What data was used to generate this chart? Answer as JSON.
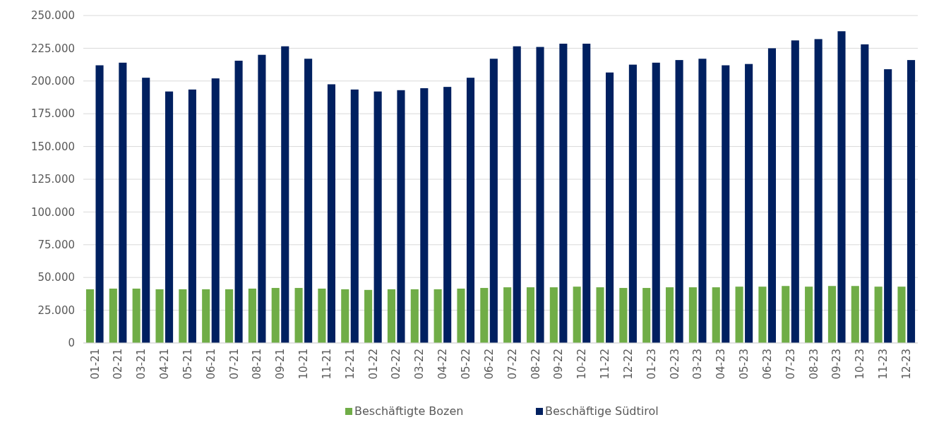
{
  "chart_data": {
    "type": "bar",
    "categories": [
      "01-21",
      "02-21",
      "03-21",
      "04-21",
      "05-21",
      "06-21",
      "07-21",
      "08-21",
      "09-21",
      "10-21",
      "11-21",
      "12-21",
      "01-22",
      "02-22",
      "03-22",
      "04-22",
      "05-22",
      "06-22",
      "07-22",
      "08-22",
      "09-22",
      "10-22",
      "11-22",
      "12-22",
      "01-23",
      "02-23",
      "03-23",
      "04-23",
      "05-23",
      "06-23",
      "07-23",
      "08-23",
      "09-23",
      "10-23",
      "11-23",
      "12-23"
    ],
    "series": [
      {
        "name": "Beschäftigte Bozen",
        "color": "#70ad47",
        "values": [
          41000,
          41500,
          41500,
          41000,
          41000,
          41000,
          41000,
          41500,
          42000,
          42000,
          41500,
          41000,
          40500,
          41000,
          41000,
          41000,
          41500,
          42000,
          42500,
          42500,
          42500,
          43000,
          42500,
          42000,
          42000,
          42500,
          42500,
          42500,
          43000,
          43000,
          43500,
          43000,
          43500,
          43500,
          43000,
          43000
        ]
      },
      {
        "name": "Beschäftige Südtirol",
        "color": "#002060",
        "values": [
          212000,
          214000,
          202500,
          192000,
          193500,
          202000,
          215500,
          220000,
          226500,
          217000,
          197500,
          193500,
          192000,
          193000,
          194500,
          195500,
          202500,
          217000,
          226500,
          226000,
          228500,
          228500,
          206500,
          212500,
          214000,
          216000,
          217000,
          212000,
          213000,
          225000,
          231000,
          232000,
          238000,
          228000,
          209000,
          216000
        ]
      }
    ],
    "ylim": [
      0,
      250000
    ],
    "yticks": [
      {
        "value": 0,
        "label": "0"
      },
      {
        "value": 25000,
        "label": "25.000"
      },
      {
        "value": 50000,
        "label": "50.000"
      },
      {
        "value": 75000,
        "label": "75.000"
      },
      {
        "value": 100000,
        "label": "100.000"
      },
      {
        "value": 125000,
        "label": "125.000"
      },
      {
        "value": 150000,
        "label": "150.000"
      },
      {
        "value": 175000,
        "label": "175.000"
      },
      {
        "value": 200000,
        "label": "200.000"
      },
      {
        "value": 225000,
        "label": "225.000"
      },
      {
        "value": 250000,
        "label": "250.000"
      }
    ],
    "grid": "y",
    "legend": "bottom"
  }
}
